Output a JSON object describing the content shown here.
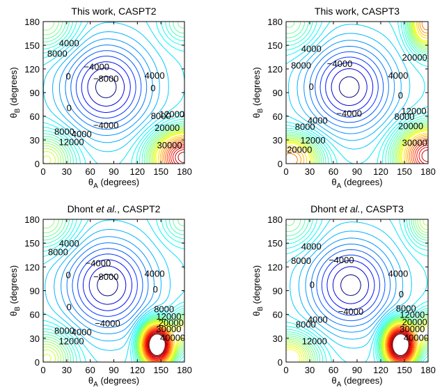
{
  "figure": {
    "background": "#ffffff",
    "axis_color": "#000000"
  },
  "chart_data": [
    {
      "type": "contour",
      "title": "This work, CASPT2",
      "xlabel": "θ_A (degrees)",
      "ylabel": "θ_B (degrees)",
      "xlim": [
        0,
        180
      ],
      "ylim": [
        0,
        180
      ],
      "xticks": [
        "0",
        "30",
        "60",
        "90",
        "120",
        "150",
        "180"
      ],
      "yticks": [
        "0",
        "30",
        "60",
        "90",
        "120",
        "150",
        "180"
      ],
      "contour_labels": [
        {
          "text": "8000",
          "x": 18,
          "y": 140
        },
        {
          "text": "4000",
          "x": 33,
          "y": 153
        },
        {
          "text": "0",
          "x": 32,
          "y": 111
        },
        {
          "text": "−4000",
          "x": 68,
          "y": 123
        },
        {
          "text": "−8000",
          "x": 80,
          "y": 108
        },
        {
          "text": "4000",
          "x": 142,
          "y": 112
        },
        {
          "text": "0",
          "x": 140,
          "y": 96
        },
        {
          "text": "0",
          "x": 33,
          "y": 71
        },
        {
          "text": "−4000",
          "x": 80,
          "y": 49
        },
        {
          "text": "8000",
          "x": 150,
          "y": 61
        },
        {
          "text": "12000",
          "x": 164,
          "y": 63
        },
        {
          "text": "8000",
          "x": 27,
          "y": 41
        },
        {
          "text": "4000",
          "x": 49,
          "y": 38
        },
        {
          "text": "12000",
          "x": 36,
          "y": 28
        },
        {
          "text": "20000",
          "x": 158,
          "y": 46
        },
        {
          "text": "30000",
          "x": 161,
          "y": 24
        }
      ]
    },
    {
      "type": "contour",
      "title": "This work, CASPT3",
      "xlabel": "θ_A (degrees)",
      "ylabel": "θ_B (degrees)",
      "xlim": [
        0,
        180
      ],
      "ylim": [
        0,
        180
      ],
      "xticks": [
        "0",
        "30",
        "60",
        "90",
        "120",
        "150",
        "180"
      ],
      "yticks": [
        "0",
        "30",
        "60",
        "90",
        "120",
        "150",
        "180"
      ],
      "contour_labels": [
        {
          "text": "20000",
          "x": 163,
          "y": 135
        },
        {
          "text": "8000",
          "x": 19,
          "y": 125
        },
        {
          "text": "4000",
          "x": 32,
          "y": 146
        },
        {
          "text": "0",
          "x": 32,
          "y": 98
        },
        {
          "text": "−4000",
          "x": 68,
          "y": 127
        },
        {
          "text": "4000",
          "x": 142,
          "y": 112
        },
        {
          "text": "0",
          "x": 145,
          "y": 87
        },
        {
          "text": "−4000",
          "x": 80,
          "y": 64
        },
        {
          "text": "8000",
          "x": 150,
          "y": 60
        },
        {
          "text": "12000",
          "x": 162,
          "y": 67
        },
        {
          "text": "20000",
          "x": 158,
          "y": 48
        },
        {
          "text": "8000",
          "x": 24,
          "y": 47
        },
        {
          "text": "4000",
          "x": 40,
          "y": 55
        },
        {
          "text": "12000",
          "x": 34,
          "y": 30
        },
        {
          "text": "20000",
          "x": 17,
          "y": 18
        },
        {
          "text": "30000",
          "x": 163,
          "y": 27
        }
      ]
    },
    {
      "type": "contour",
      "title": "Dhont et al., CASPT2",
      "xlabel": "θ_A (degrees)",
      "ylabel": "θ_B (degrees)",
      "xlim": [
        0,
        180
      ],
      "ylim": [
        0,
        180
      ],
      "xticks": [
        "0",
        "30",
        "60",
        "90",
        "120",
        "150",
        "180"
      ],
      "yticks": [
        "0",
        "30",
        "60",
        "90",
        "120",
        "150",
        "180"
      ],
      "contour_labels": [
        {
          "text": "8000",
          "x": 19,
          "y": 139
        },
        {
          "text": "4000",
          "x": 33,
          "y": 150
        },
        {
          "text": "0",
          "x": 32,
          "y": 110
        },
        {
          "text": "−4000",
          "x": 70,
          "y": 125
        },
        {
          "text": "−8000",
          "x": 80,
          "y": 108
        },
        {
          "text": "4000",
          "x": 142,
          "y": 112
        },
        {
          "text": "0",
          "x": 143,
          "y": 92
        },
        {
          "text": "0",
          "x": 33,
          "y": 70
        },
        {
          "text": "−4000",
          "x": 82,
          "y": 49
        },
        {
          "text": "8000",
          "x": 154,
          "y": 67
        },
        {
          "text": "12000",
          "x": 160,
          "y": 58
        },
        {
          "text": "20000",
          "x": 163,
          "y": 50
        },
        {
          "text": "30000",
          "x": 160,
          "y": 42
        },
        {
          "text": "40000",
          "x": 165,
          "y": 31
        },
        {
          "text": "8000",
          "x": 27,
          "y": 40
        },
        {
          "text": "4000",
          "x": 49,
          "y": 38
        },
        {
          "text": "12000",
          "x": 36,
          "y": 27
        }
      ]
    },
    {
      "type": "contour",
      "title": "Dhont et al., CASPT3",
      "xlabel": "θ_A (degrees)",
      "ylabel": "θ_B (degrees)",
      "xlim": [
        0,
        180
      ],
      "ylim": [
        0,
        180
      ],
      "xticks": [
        "0",
        "30",
        "60",
        "90",
        "120",
        "150",
        "180"
      ],
      "yticks": [
        "0",
        "30",
        "60",
        "90",
        "120",
        "150",
        "180"
      ],
      "contour_labels": [
        {
          "text": "8000",
          "x": 19,
          "y": 128
        },
        {
          "text": "4000",
          "x": 32,
          "y": 146
        },
        {
          "text": "0",
          "x": 33,
          "y": 98
        },
        {
          "text": "−4000",
          "x": 70,
          "y": 129
        },
        {
          "text": "4000",
          "x": 142,
          "y": 112
        },
        {
          "text": "0",
          "x": 146,
          "y": 86
        },
        {
          "text": "−4000",
          "x": 82,
          "y": 64
        },
        {
          "text": "8000",
          "x": 152,
          "y": 68
        },
        {
          "text": "12000",
          "x": 160,
          "y": 60
        },
        {
          "text": "20000",
          "x": 163,
          "y": 51
        },
        {
          "text": "30000",
          "x": 160,
          "y": 42
        },
        {
          "text": "40000",
          "x": 165,
          "y": 31
        },
        {
          "text": "8000",
          "x": 25,
          "y": 48
        },
        {
          "text": "4000",
          "x": 40,
          "y": 54
        },
        {
          "text": "12000",
          "x": 36,
          "y": 27
        }
      ]
    }
  ]
}
